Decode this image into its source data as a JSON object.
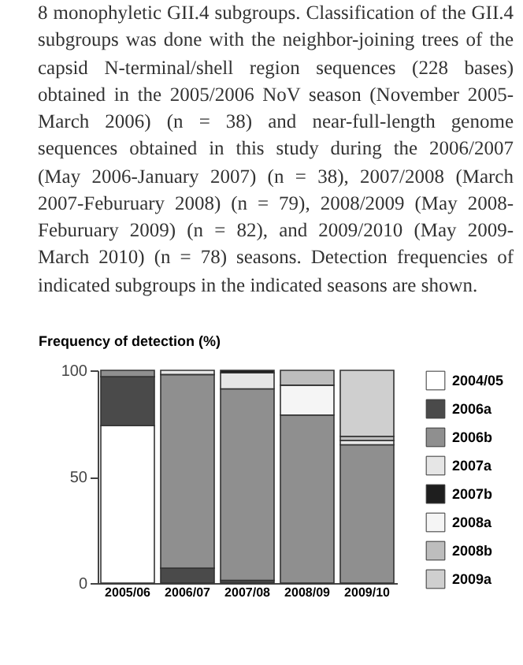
{
  "chart_data": {
    "type": "bar",
    "stacked": true,
    "ylabel": "Frequency  of detection  (%)",
    "annotations": [
      "8 monophyletic GII.4 subgroups. Classification of the GII.4 subgroups was done with the neighbor-joining trees of the capsid N-terminal/shell region sequences (228 bases) obtained in the 2005/2006 NoV season (November 2005-March 2006) (n = 38) and near-full-length genome sequences obtained in this study during the 2006/2007 (May 2006-January 2007) (n = 38), 2007/2008 (March 2007-Feburuary 2008) (n = 79), 2008/2009 (May 2008-Feburuary 2009) (n = 82), and 2009/2010 (May 2009-March 2010) (n = 78) seasons. Detection frequencies of indicated subgroups in the indicated seasons are shown."
    ],
    "categories": [
      "2005/06",
      "2006/07",
      "2007/08",
      "2008/09",
      "2009/10"
    ],
    "series": [
      {
        "name": "2004/05",
        "color": "#ffffff",
        "values": [
          74,
          0,
          0,
          0,
          0
        ]
      },
      {
        "name": "2006a",
        "color": "#4a4a4a",
        "values": [
          23,
          7,
          1.3,
          0,
          0
        ]
      },
      {
        "name": "2006b",
        "color": "#8f8f8f",
        "values": [
          3,
          91,
          90,
          79,
          65
        ]
      },
      {
        "name": "2007a",
        "color": "#e6e6e6",
        "values": [
          0,
          2,
          7.5,
          0,
          2
        ]
      },
      {
        "name": "2007b",
        "color": "#1e1e1e",
        "values": [
          0,
          0,
          1.2,
          0,
          0
        ]
      },
      {
        "name": "2008a",
        "color": "#f5f5f5",
        "values": [
          0,
          0,
          0,
          14,
          0
        ]
      },
      {
        "name": "2008b",
        "color": "#bdbdbd",
        "values": [
          0,
          0,
          0,
          7,
          2
        ]
      },
      {
        "name": "2009a",
        "color": "#cfcfcf",
        "values": [
          0,
          0,
          0,
          0,
          31
        ]
      }
    ],
    "ylim": [
      0,
      100
    ],
    "yticks": [
      0,
      50,
      100
    ],
    "grid": false,
    "legend": "right"
  }
}
